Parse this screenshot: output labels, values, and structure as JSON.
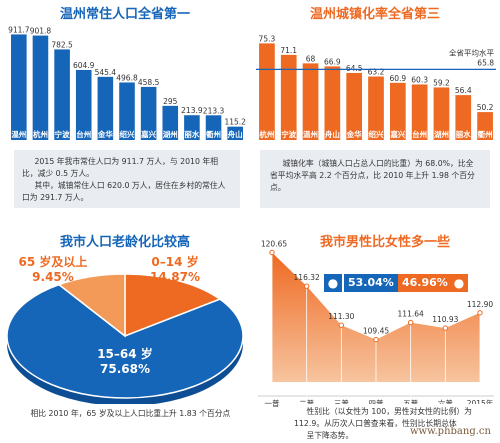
{
  "chart_data": [
    {
      "type": "bar",
      "title": "温州常住人口全省第一",
      "categories": [
        "温州",
        "杭州",
        "宁波",
        "台州",
        "金华",
        "绍兴",
        "嘉兴",
        "湖州",
        "丽水",
        "衢州",
        "舟山"
      ],
      "values": [
        911.7,
        901.8,
        782.5,
        604.9,
        545.4,
        496.8,
        458.5,
        295,
        213.9,
        213.3,
        115.2
      ],
      "value_labels": [
        "911.7",
        "901.8",
        "782.5",
        "604.9",
        "545.4",
        "496.8",
        "458.5",
        "295",
        "213.9",
        "213.3",
        "115.2"
      ],
      "ylim": [
        0,
        950
      ],
      "color": "#1565b8",
      "grid": false,
      "note": [
        "2015 年我市常住人口为 911.7 万人，与 2010 年相比，减少 0.5 万人。",
        "其中，城镇常住人口 620.0 万人，居住在乡村的常住人口为 291.7 万人。"
      ]
    },
    {
      "type": "bar",
      "title": "温州城镇化率全省第三",
      "categories": [
        "杭州",
        "宁波",
        "温州",
        "舟山",
        "金华",
        "绍兴",
        "嘉兴",
        "台州",
        "湖州",
        "丽水",
        "衢州"
      ],
      "values": [
        75.3,
        71.1,
        68,
        66.9,
        64.5,
        63.2,
        60.9,
        60.3,
        59.2,
        56.4,
        50.2
      ],
      "value_labels": [
        "75.3",
        "71.1",
        "68",
        "66.9",
        "64.5",
        "63.2",
        "60.9",
        "60.3",
        "59.2",
        "56.4",
        "50.2"
      ],
      "ylim": [
        40,
        78
      ],
      "reference_line": {
        "label": "全省平均水平",
        "value": 65.8,
        "value_label": "65.8"
      },
      "color": "#ee6a22",
      "grid": false,
      "note": [
        "城镇化率（城镇人口占总人口的比重）为 68.0%，比全省平均水平高 2.2 个百分点，比 2010 年上升 1.98 个百分点。"
      ]
    },
    {
      "type": "pie",
      "title": "我市人口老龄化比较高",
      "slices": [
        {
          "label": "15–64 岁",
          "value": 75.68,
          "value_label": "75.68%",
          "color": "#1565b8"
        },
        {
          "label": "0–14 岁",
          "value": 14.87,
          "value_label": "14.87%",
          "color": "#ee6a22"
        },
        {
          "label": "65 岁及以上",
          "value": 9.45,
          "value_label": "9.45%",
          "color": "#f39a58"
        }
      ],
      "note": [
        "相比 2010 年，65 岁及以上人口比重上升 1.83 个百分点"
      ]
    },
    {
      "type": "area",
      "title": "我市男性比女性多一些",
      "categories": [
        "一普",
        "二普",
        "三普",
        "四普",
        "五普",
        "六普",
        "2015年"
      ],
      "values": [
        120.65,
        116.32,
        111.3,
        109.45,
        111.64,
        110.93,
        112.9
      ],
      "value_labels": [
        "120.65",
        "116.32",
        "111.30",
        "109.45",
        "111.64",
        "110.93",
        "112.90"
      ],
      "ylim": [
        104,
        122
      ],
      "color": "#ee6a22",
      "badges": {
        "male": {
          "icon": "male-icon",
          "value": "53.04%",
          "color": "#1565b8"
        },
        "female": {
          "icon": "female-icon",
          "value": "46.96%",
          "color": "#ee6a22"
        }
      },
      "note": [
        "性别比（以女性为 100，男性对女性的比例）为 112.9。从历次人口普查来看，性别比长期总体",
        "呈下降态势。"
      ]
    }
  ],
  "watermark": "www.phbang.cn"
}
